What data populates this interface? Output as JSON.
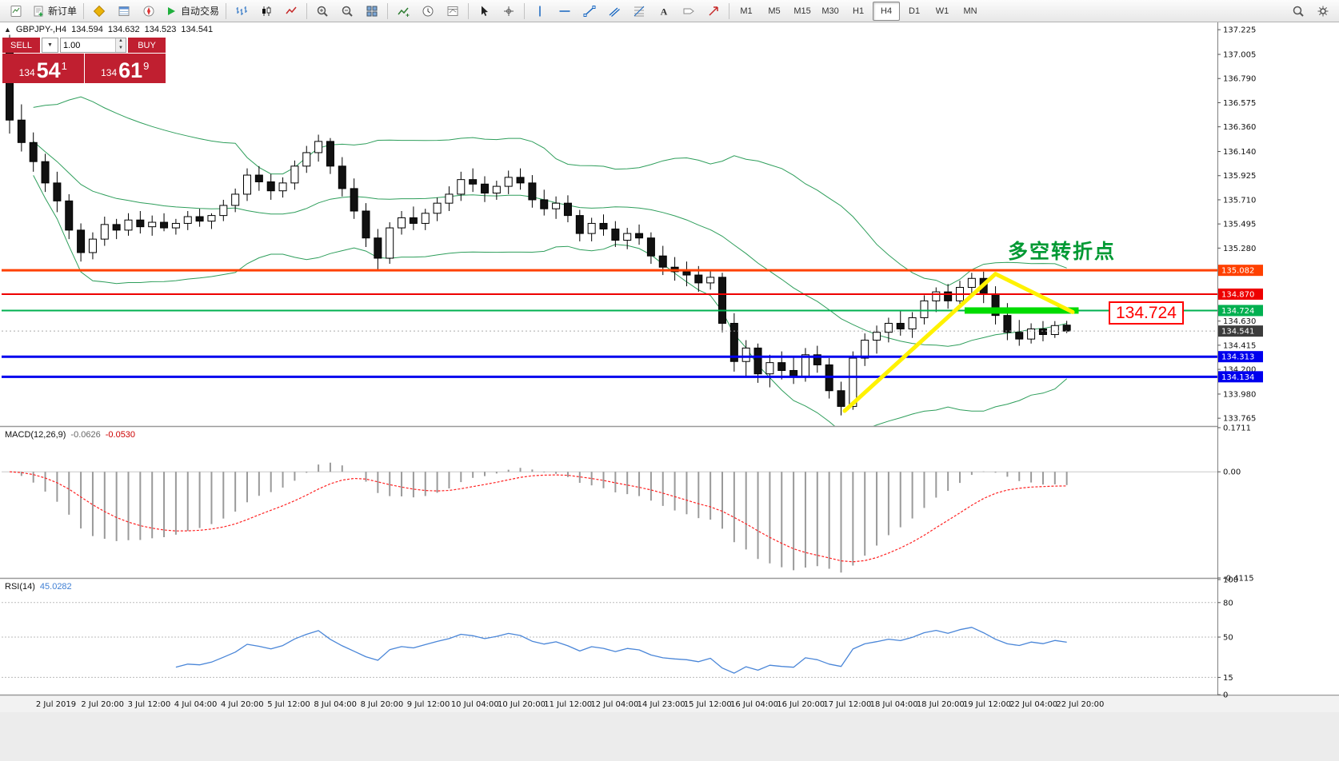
{
  "colors": {
    "bull": "#ffffff",
    "bear": "#111111",
    "wick": "#000000",
    "band": "#2e9e5b",
    "macd_hist": "#9a9a9a",
    "macd_signal": "#ff2222",
    "rsi_line": "#4a86d8",
    "trendline": "#fff200",
    "highlight": "#00dc00",
    "annotation_green": "#009933",
    "callout_red": "#ff0000",
    "panel_red": "#c01f30",
    "current_tag": "#3c3c3c"
  },
  "toolbar": {
    "groups": [
      {
        "items": [
          {
            "name": "new-chart-button",
            "sym": "chartpage"
          },
          {
            "name": "new-order-button",
            "sym": "neworder",
            "label": "新订单"
          }
        ]
      },
      {
        "items": [
          {
            "name": "market-watch-button",
            "sym": "marketwatch"
          },
          {
            "name": "data-window-button",
            "sym": "datawindow"
          },
          {
            "name": "navigator-button",
            "sym": "navigator"
          },
          {
            "name": "autotrading-button",
            "sym": "autoplay",
            "label": "自动交易"
          }
        ]
      },
      {
        "items": [
          {
            "name": "bar-chart-button",
            "sym": "bars"
          },
          {
            "name": "candlestick-chart-button",
            "sym": "candles"
          },
          {
            "name": "line-chart-button",
            "sym": "linechart"
          }
        ]
      },
      {
        "items": [
          {
            "name": "zoom-in-button",
            "sym": "zoomin"
          },
          {
            "name": "zoom-out-button",
            "sym": "zoomout"
          },
          {
            "name": "tile-windows-button",
            "sym": "grid"
          }
        ]
      },
      {
        "items": [
          {
            "name": "indicators-button",
            "sym": "indicator"
          },
          {
            "name": "periods-button",
            "sym": "clock"
          },
          {
            "name": "templates-button",
            "sym": "template"
          }
        ]
      },
      {
        "items": [
          {
            "name": "cursor-button",
            "sym": "cursor"
          },
          {
            "name": "crosshair-button",
            "sym": "cross"
          }
        ]
      },
      {
        "items": [
          {
            "name": "vertical-line-button",
            "sym": "vline"
          },
          {
            "name": "horizontal-line-button",
            "sym": "hline"
          },
          {
            "name": "trendline-button",
            "sym": "trend"
          },
          {
            "name": "channel-button",
            "sym": "channel"
          },
          {
            "name": "fibonacci-button",
            "sym": "fib"
          },
          {
            "name": "text-button",
            "sym": "textA"
          },
          {
            "name": "label-button",
            "sym": "labeltag"
          },
          {
            "name": "arrow-button",
            "sym": "arrowmark"
          }
        ]
      },
      {
        "kind": "tf",
        "items": [
          {
            "name": "tf-m1-button",
            "label": "M1"
          },
          {
            "name": "tf-m5-button",
            "label": "M5"
          },
          {
            "name": "tf-m15-button",
            "label": "M15"
          },
          {
            "name": "tf-m30-button",
            "label": "M30"
          },
          {
            "name": "tf-h1-button",
            "label": "H1"
          },
          {
            "name": "tf-h4-button",
            "label": "H4",
            "active": true
          },
          {
            "name": "tf-d1-button",
            "label": "D1"
          },
          {
            "name": "tf-w1-button",
            "label": "W1"
          },
          {
            "name": "tf-mn-button",
            "label": "MN"
          }
        ]
      },
      {
        "align": "right",
        "items": [
          {
            "name": "search-button",
            "sym": "search"
          },
          {
            "name": "settings-button",
            "sym": "gear"
          }
        ]
      }
    ]
  },
  "chart_info": {
    "collapse_icon": "▲",
    "symbol": "GBPJPY-,H4",
    "open": "134.594",
    "high": "134.632",
    "low": "134.523",
    "close": "134.541"
  },
  "quote_panel": {
    "sell_label": "SELL",
    "buy_label": "BUY",
    "volume": "1.00",
    "caret_down": "▼",
    "caret_up_small": "▲",
    "caret_down_small": "▼",
    "sell_small": "134",
    "sell_big": "54",
    "sell_sup": "1",
    "buy_small": "134",
    "buy_big": "61",
    "buy_sup": "9"
  },
  "indicators": {
    "macd": {
      "name": "MACD(12,26,9)",
      "value_main": "-0.0626",
      "value_signal": "-0.0530"
    },
    "rsi": {
      "name": "RSI(14)",
      "value": "45.0282"
    }
  },
  "annotations": {
    "turning_point": "多空转折点",
    "callout": "134.724"
  },
  "chart_data": {
    "type": "candlestick",
    "title": "GBPJPY-,H4",
    "price_range": [
      133.695,
      137.29
    ],
    "price_ticks": [
      "137.225",
      "137.005",
      "136.790",
      "136.575",
      "136.360",
      "136.140",
      "135.925",
      "135.710",
      "135.495",
      "135.280",
      "134.630",
      "134.415",
      "134.200",
      "133.980",
      "133.765"
    ],
    "price_tags": [
      {
        "label": "135.082",
        "price": 135.082,
        "bg": "#ff4000"
      },
      {
        "label": "134.870",
        "price": 134.87,
        "bg": "#ee0000"
      },
      {
        "label": "134.724",
        "price": 134.724,
        "bg": "#00b050"
      },
      {
        "label": "134.541",
        "price": 134.541,
        "bg": "#3c3c3c"
      },
      {
        "label": "134.313",
        "price": 134.313,
        "bg": "#0000ee"
      },
      {
        "label": "134.134",
        "price": 134.134,
        "bg": "#0000ee"
      }
    ],
    "current_price": 134.541,
    "hlines": [
      {
        "price": 135.082,
        "color": "#ff4000",
        "w": 3
      },
      {
        "price": 134.87,
        "color": "#ee0000",
        "w": 2
      },
      {
        "price": 134.724,
        "color": "#00b050",
        "w": 2
      },
      {
        "price": 134.313,
        "color": "#0000ee",
        "w": 3
      },
      {
        "price": 134.134,
        "color": "#0000ee",
        "w": 3
      }
    ],
    "highlight_segment": {
      "i1": 80.4,
      "i2": 90,
      "price": 134.724,
      "thickness": 8
    },
    "trendlines": [
      {
        "i1": 70.3,
        "p1": 133.83,
        "i2": 83,
        "p2": 135.05
      },
      {
        "i1": 83,
        "p1": 135.05,
        "i2": 89.5,
        "p2": 134.71
      }
    ],
    "bollinger": {
      "period": 20,
      "deviation": 2
    },
    "macd": {
      "fast": 12,
      "slow": 26,
      "signal": 9,
      "range": [
        -0.4115,
        0.1711
      ],
      "ticks": [
        "0.1711",
        "0.00",
        "-0.4115"
      ]
    },
    "rsi": {
      "period": 14,
      "range": [
        0,
        100
      ],
      "levels": [
        80,
        50,
        15
      ],
      "ticks": [
        "100",
        "80",
        "50",
        "15",
        "0"
      ]
    },
    "x_labels": [
      "2 Jul 2019",
      "2 Jul 20:00",
      "3 Jul 12:00",
      "4 Jul 04:00",
      "4 Jul 20:00",
      "5 Jul 12:00",
      "8 Jul 04:00",
      "8 Jul 20:00",
      "9 Jul 12:00",
      "10 Jul 04:00",
      "10 Jul 20:00",
      "11 Jul 12:00",
      "12 Jul 04:00",
      "14 Jul 23:00",
      "15 Jul 12:00",
      "16 Jul 04:00",
      "16 Jul 20:00",
      "17 Jul 12:00",
      "18 Jul 04:00",
      "18 Jul 20:00",
      "19 Jul 12:00",
      "22 Jul 04:00",
      "22 Jul 20:00"
    ],
    "candles": [
      [
        137.12,
        137.18,
        136.3,
        136.42
      ],
      [
        136.42,
        136.56,
        136.14,
        136.22
      ],
      [
        136.22,
        136.31,
        135.96,
        136.05
      ],
      [
        136.05,
        136.12,
        135.78,
        135.86
      ],
      [
        135.86,
        135.96,
        135.6,
        135.7
      ],
      [
        135.7,
        135.76,
        135.36,
        135.44
      ],
      [
        135.44,
        135.5,
        135.16,
        135.24
      ],
      [
        135.24,
        135.42,
        135.18,
        135.36
      ],
      [
        135.36,
        135.56,
        135.3,
        135.49
      ],
      [
        135.49,
        135.54,
        135.36,
        135.44
      ],
      [
        135.44,
        135.59,
        135.39,
        135.53
      ],
      [
        135.53,
        135.61,
        135.41,
        135.47
      ],
      [
        135.47,
        135.57,
        135.39,
        135.51
      ],
      [
        135.51,
        135.59,
        135.43,
        135.46
      ],
      [
        135.46,
        135.54,
        135.4,
        135.5
      ],
      [
        135.5,
        135.61,
        135.44,
        135.56
      ],
      [
        135.56,
        135.63,
        135.47,
        135.52
      ],
      [
        135.52,
        135.59,
        135.45,
        135.57
      ],
      [
        135.57,
        135.71,
        135.52,
        135.66
      ],
      [
        135.66,
        135.81,
        135.6,
        135.76
      ],
      [
        135.76,
        135.99,
        135.7,
        135.93
      ],
      [
        135.93,
        136.01,
        135.79,
        135.87
      ],
      [
        135.87,
        135.94,
        135.71,
        135.79
      ],
      [
        135.79,
        135.91,
        135.73,
        135.86
      ],
      [
        135.86,
        136.06,
        135.8,
        136.01
      ],
      [
        136.01,
        136.19,
        135.95,
        136.13
      ],
      [
        136.13,
        136.29,
        136.05,
        136.23
      ],
      [
        136.23,
        136.26,
        135.94,
        136.01
      ],
      [
        136.01,
        136.09,
        135.74,
        135.81
      ],
      [
        135.81,
        135.9,
        135.54,
        135.61
      ],
      [
        135.61,
        135.68,
        135.29,
        135.37
      ],
      [
        135.37,
        135.45,
        135.09,
        135.19
      ],
      [
        135.19,
        135.51,
        135.14,
        135.46
      ],
      [
        135.46,
        135.61,
        135.4,
        135.55
      ],
      [
        135.55,
        135.65,
        135.44,
        135.5
      ],
      [
        135.5,
        135.63,
        135.44,
        135.59
      ],
      [
        135.59,
        135.73,
        135.52,
        135.68
      ],
      [
        135.68,
        135.83,
        135.61,
        135.76
      ],
      [
        135.76,
        135.96,
        135.7,
        135.89
      ],
      [
        135.89,
        135.99,
        135.78,
        135.85
      ],
      [
        135.85,
        135.92,
        135.69,
        135.77
      ],
      [
        135.77,
        135.88,
        135.71,
        135.83
      ],
      [
        135.83,
        135.97,
        135.76,
        135.91
      ],
      [
        135.91,
        135.99,
        135.8,
        135.86
      ],
      [
        135.86,
        135.93,
        135.64,
        135.71
      ],
      [
        135.71,
        135.8,
        135.57,
        135.63
      ],
      [
        135.63,
        135.74,
        135.54,
        135.68
      ],
      [
        135.68,
        135.75,
        135.51,
        135.57
      ],
      [
        135.57,
        135.62,
        135.34,
        135.41
      ],
      [
        135.41,
        135.55,
        135.34,
        135.5
      ],
      [
        135.5,
        135.58,
        135.39,
        135.45
      ],
      [
        135.45,
        135.52,
        135.29,
        135.35
      ],
      [
        135.35,
        135.46,
        135.27,
        135.41
      ],
      [
        135.41,
        135.49,
        135.31,
        135.37
      ],
      [
        135.37,
        135.42,
        135.14,
        135.21
      ],
      [
        135.21,
        135.3,
        135.04,
        135.11
      ],
      [
        135.11,
        135.2,
        134.99,
        135.07
      ],
      [
        135.07,
        135.16,
        134.94,
        135.04
      ],
      [
        135.04,
        135.12,
        134.89,
        134.97
      ],
      [
        134.97,
        135.08,
        134.91,
        135.02
      ],
      [
        135.02,
        135.06,
        134.53,
        134.61
      ],
      [
        134.61,
        134.7,
        134.18,
        134.27
      ],
      [
        134.27,
        134.46,
        134.14,
        134.39
      ],
      [
        134.39,
        134.43,
        134.08,
        134.16
      ],
      [
        134.16,
        134.33,
        134.04,
        134.26
      ],
      [
        134.26,
        134.36,
        134.11,
        134.19
      ],
      [
        134.19,
        134.31,
        134.07,
        134.14
      ],
      [
        134.14,
        134.39,
        134.09,
        134.33
      ],
      [
        134.33,
        134.41,
        134.17,
        134.24
      ],
      [
        134.24,
        134.3,
        133.94,
        134.01
      ],
      [
        134.01,
        134.09,
        133.79,
        133.87
      ],
      [
        133.87,
        134.36,
        133.84,
        134.3
      ],
      [
        134.3,
        134.52,
        134.23,
        134.46
      ],
      [
        134.46,
        134.59,
        134.34,
        134.53
      ],
      [
        134.53,
        134.66,
        134.44,
        134.61
      ],
      [
        134.61,
        134.73,
        134.5,
        134.56
      ],
      [
        134.56,
        134.71,
        134.48,
        134.66
      ],
      [
        134.66,
        134.86,
        134.6,
        134.81
      ],
      [
        134.81,
        134.93,
        134.71,
        134.89
      ],
      [
        134.89,
        134.96,
        134.74,
        134.81
      ],
      [
        134.81,
        134.99,
        134.77,
        134.93
      ],
      [
        134.93,
        135.06,
        134.86,
        135.01
      ],
      [
        135.01,
        135.07,
        134.79,
        134.87
      ],
      [
        134.87,
        134.94,
        134.6,
        134.68
      ],
      [
        134.68,
        134.79,
        134.46,
        134.53
      ],
      [
        134.53,
        134.64,
        134.41,
        134.47
      ],
      [
        134.47,
        134.61,
        134.43,
        134.56
      ],
      [
        134.56,
        134.63,
        134.45,
        134.51
      ],
      [
        134.51,
        134.63,
        134.48,
        134.59
      ],
      [
        134.594,
        134.632,
        134.523,
        134.541
      ]
    ]
  }
}
